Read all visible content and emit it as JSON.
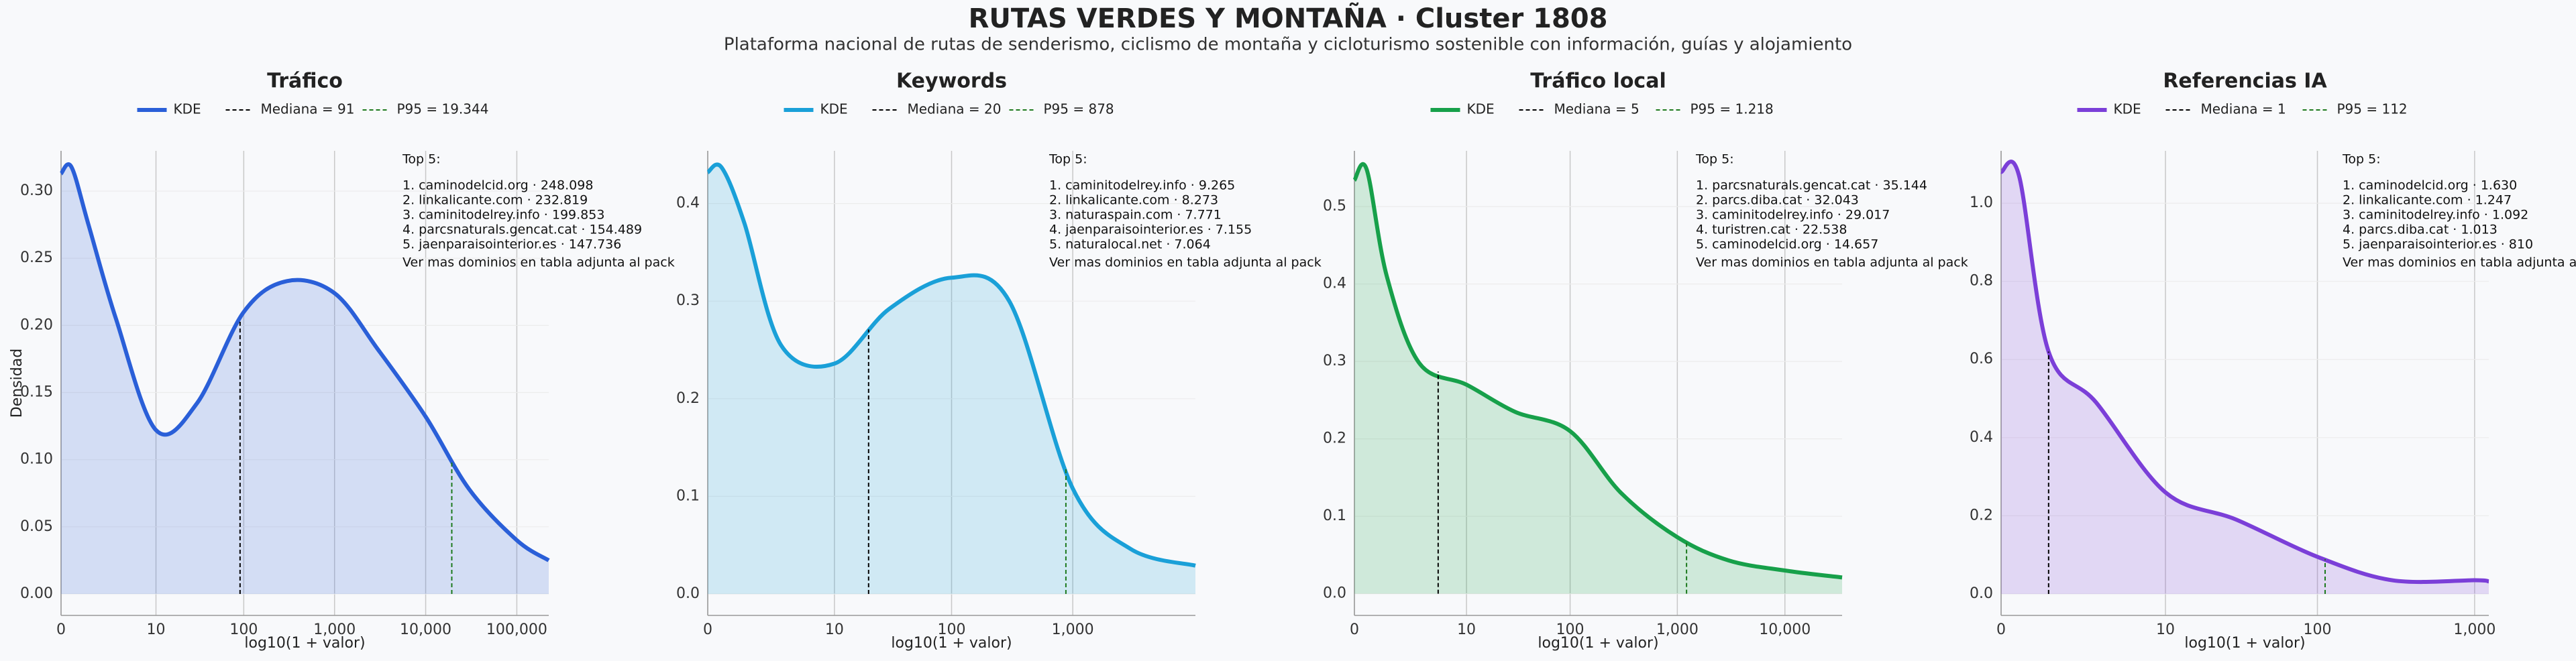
{
  "title": "RUTAS VERDES Y MONTAÑA · Cluster 1808",
  "subtitle": "Plataforma nacional de rutas de senderismo, ciclismo de montaña y cicloturismo sostenible con información, guías y alojamiento",
  "chart_data": [
    {
      "type": "line",
      "title": "Tráfico",
      "x_label": "log10(1 + valor)",
      "y_label": "Densidad",
      "xscale": "log1p",
      "grid": true,
      "x": [
        0,
        0.3,
        1,
        3,
        10,
        30,
        100,
        300,
        1000,
        3000,
        10000,
        30000,
        100000,
        224000
      ],
      "series": [
        {
          "name": "KDE",
          "color": "#2a5fd8",
          "values": [
            0.313,
            0.318,
            0.275,
            0.205,
            0.122,
            0.142,
            0.21,
            0.233,
            0.224,
            0.182,
            0.132,
            0.078,
            0.04,
            0.025
          ]
        }
      ],
      "median": {
        "value": 91,
        "label": "Mediana = 91",
        "color": "#000000"
      },
      "p95": {
        "value": 19344,
        "label": "P95 = 19.344",
        "color": "#1e7a1e"
      },
      "xlim": [
        0,
        224000
      ],
      "xticks": [
        0,
        10,
        100,
        {
          "value": 1000,
          "label": "1,000"
        },
        {
          "value": 10000,
          "label": "10,000"
        },
        {
          "value": 100000,
          "label": "100,000"
        }
      ],
      "ylim": [
        -0.016,
        0.33
      ],
      "yticks": [
        {
          "value": 0,
          "label": "0.00"
        },
        0.05,
        {
          "value": 0.1,
          "label": "0.10"
        },
        0.15,
        {
          "value": 0.2,
          "label": "0.20"
        },
        0.25,
        {
          "value": 0.3,
          "label": "0.30"
        }
      ],
      "annotation": [
        "Top 5:",
        "1. caminodelcid.org · 248.098",
        "2. linkalicante.com · 232.819",
        "3. caminitodelrey.info · 199.853",
        "4. parcsnaturals.gencat.cat · 154.489",
        "5. jaenparaisointerior.es · 147.736",
        "Ver mas dominios en tabla adjunta al pack"
      ]
    },
    {
      "type": "line",
      "title": "Keywords",
      "x_label": "log10(1 + valor)",
      "xscale": "log1p",
      "grid": true,
      "x": [
        0,
        0.3,
        1,
        3,
        10,
        30,
        100,
        300,
        1000,
        3000,
        10200
      ],
      "series": [
        {
          "name": "KDE",
          "color": "#1aa0d8",
          "values": [
            0.432,
            0.437,
            0.38,
            0.255,
            0.236,
            0.292,
            0.324,
            0.3,
            0.108,
            0.046,
            0.029
          ]
        }
      ],
      "median": {
        "value": 20,
        "label": "Mediana = 20",
        "color": "#000000"
      },
      "p95": {
        "value": 878,
        "label": "P95 = 878",
        "color": "#1e7a1e"
      },
      "xlim": [
        0,
        10200
      ],
      "xticks": [
        0,
        10,
        100,
        {
          "value": 1000,
          "label": "1,000"
        }
      ],
      "ylim": [
        -0.022,
        0.454
      ],
      "yticks": [
        {
          "value": 0,
          "label": "0.0"
        },
        0.1,
        0.2,
        0.3,
        0.4
      ],
      "annotation": [
        "Top 5:",
        "1. caminitodelrey.info · 9.265",
        "2. linkalicante.com · 8.273",
        "3. naturaspain.com · 7.771",
        "4. jaenparaisointerior.es · 7.155",
        "5. naturalocal.net · 7.064",
        "Ver mas dominios en tabla adjunta al pack"
      ]
    },
    {
      "type": "line",
      "title": "Tráfico local",
      "x_label": "log10(1 + valor)",
      "xscale": "log1p",
      "grid": true,
      "x": [
        0,
        0.3,
        1,
        3,
        10,
        30,
        100,
        300,
        1000,
        3000,
        10000,
        34000
      ],
      "series": [
        {
          "name": "KDE",
          "color": "#17a04a",
          "values": [
            0.534,
            0.548,
            0.41,
            0.298,
            0.27,
            0.235,
            0.21,
            0.13,
            0.073,
            0.043,
            0.03,
            0.021
          ]
        }
      ],
      "median": {
        "value": 5,
        "label": "Mediana = 5",
        "color": "#000000"
      },
      "p95": {
        "value": 1218,
        "label": "P95 = 1.218",
        "color": "#1e7a1e"
      },
      "xlim": [
        0,
        34000
      ],
      "xticks": [
        0,
        10,
        100,
        {
          "value": 1000,
          "label": "1,000"
        },
        {
          "value": 10000,
          "label": "10,000"
        }
      ],
      "ylim": [
        -0.028,
        0.572
      ],
      "yticks": [
        {
          "value": 0,
          "label": "0.0"
        },
        0.1,
        0.2,
        0.3,
        0.4,
        0.5
      ],
      "annotation": [
        "Top 5:",
        "1. parcsnaturals.gencat.cat · 35.144",
        "2. parcs.diba.cat · 32.043",
        "3. caminitodelrey.info · 29.017",
        "4. turistren.cat · 22.538",
        "5. caminodelcid.org · 14.657",
        "Ver mas dominios en tabla adjunta al pack"
      ]
    },
    {
      "type": "line",
      "title": "Referencias IA",
      "x_label": "log10(1 + valor)",
      "xscale": "log1p",
      "grid": true,
      "x": [
        0,
        0.3,
        1,
        3,
        10,
        30,
        100,
        300,
        1000,
        1230
      ],
      "series": [
        {
          "name": "KDE",
          "color": "#7b3fd8",
          "values": [
            1.08,
            1.07,
            0.62,
            0.49,
            0.26,
            0.19,
            0.095,
            0.035,
            0.035,
            0.032
          ]
        }
      ],
      "median": {
        "value": 1,
        "label": "Mediana = 1",
        "color": "#000000"
      },
      "p95": {
        "value": 112,
        "label": "P95 = 112",
        "color": "#1e7a1e"
      },
      "xlim": [
        0,
        1230
      ],
      "xticks": [
        0,
        10,
        100,
        {
          "value": 1000,
          "label": "1,000"
        }
      ],
      "ylim": [
        -0.055,
        1.134
      ],
      "yticks": [
        {
          "value": 0,
          "label": "0.0"
        },
        0.2,
        0.4,
        0.6,
        0.8,
        {
          "value": 1,
          "label": "1.0"
        }
      ],
      "annotation": [
        "Top 5:",
        "1. caminodelcid.org · 1.630",
        "2. linkalicante.com · 1.247",
        "3. caminitodelrey.info · 1.092",
        "4. parcs.diba.cat · 1.013",
        "5. jaenparaisointerior.es · 810",
        "Ver mas dominios en tabla adjunta al pack"
      ]
    }
  ]
}
